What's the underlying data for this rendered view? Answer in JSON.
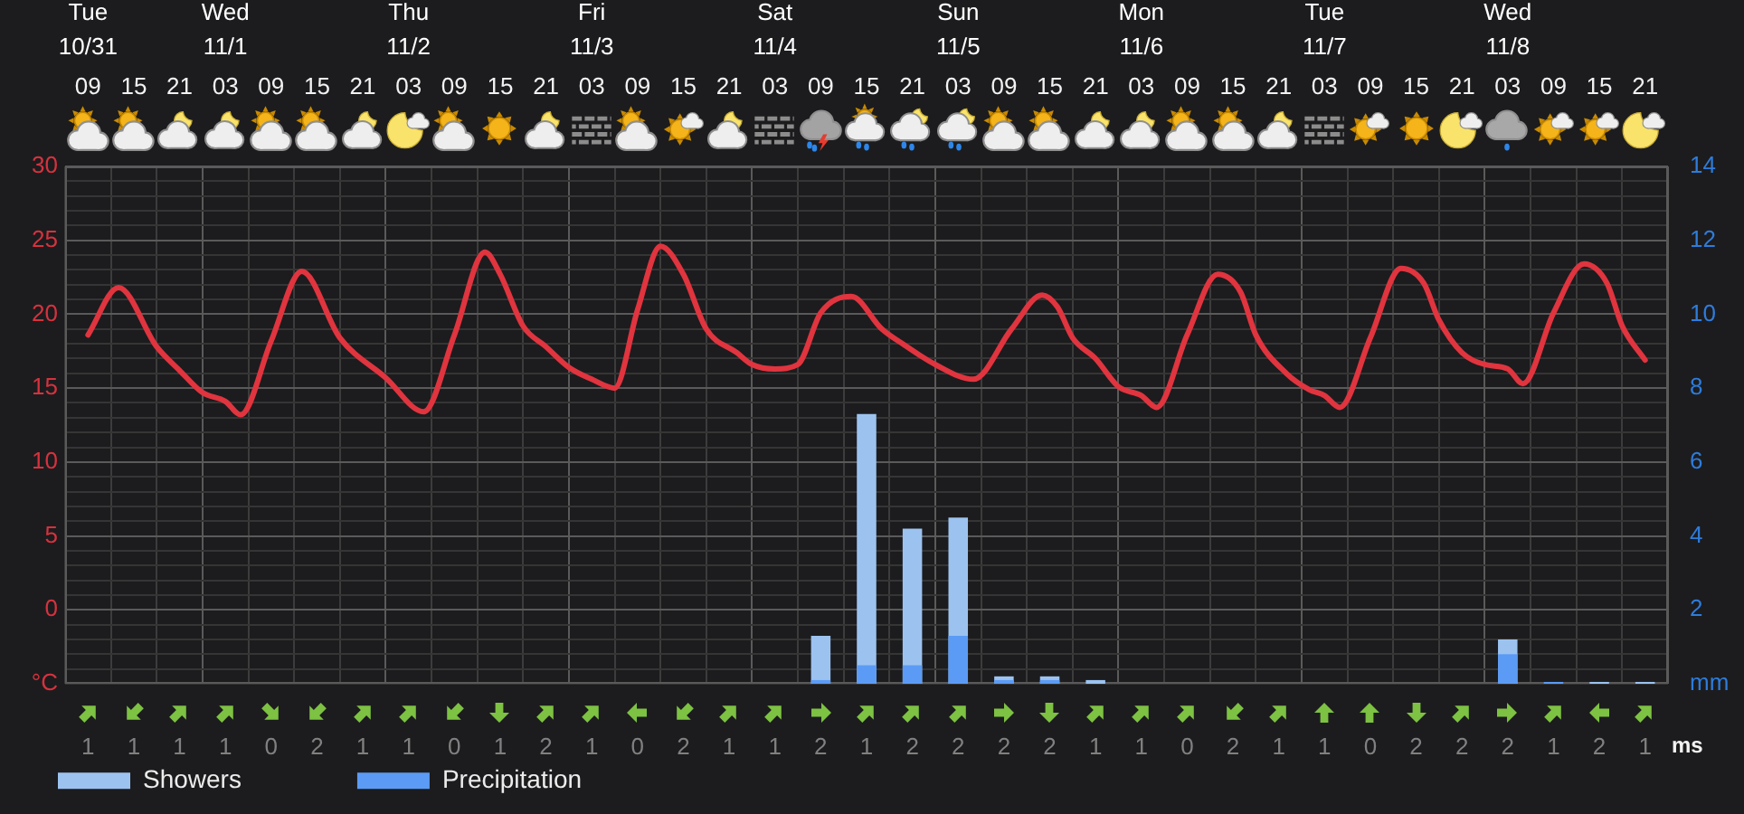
{
  "chart_data": [
    {
      "type": "bar",
      "x": [
        "--10-31T09:00",
        "--10-31T15:00",
        "--10-31T21:00",
        "--11-01T03:00",
        "--11-01T09:00",
        "--11-01T15:00",
        "--11-01T21:00",
        "--11-02T03:00",
        "--11-02T09:00",
        "--11-02T15:00",
        "--11-02T21:00",
        "--11-03T03:00",
        "--11-03T09:00",
        "--11-03T15:00",
        "--11-03T21:00",
        "--11-04T03:00",
        "--11-04T09:00",
        "--11-04T15:00",
        "--11-04T21:00",
        "--11-05T03:00",
        "--11-05T09:00",
        "--11-05T15:00",
        "--11-05T21:00",
        "--11-06T03:00",
        "--11-06T09:00",
        "--11-06T15:00",
        "--11-06T21:00",
        "--11-07T03:00",
        "--11-07T09:00",
        "--11-07T15:00",
        "--11-07T21:00",
        "--11-08T03:00",
        "--11-08T09:00",
        "--11-08T15:00",
        "--11-08T21:00"
      ],
      "xlim": [
        "--10-31T06:00",
        "--11-09T00:00"
      ],
      "xticks": [
        {
          "value": "--10-31T06:00",
          "label": null
        },
        {
          "value": "--10-31T09:00",
          "label": "09"
        },
        {
          "value": "--10-31T12:00",
          "label": null
        },
        {
          "value": "--10-31T15:00",
          "label": "15"
        },
        {
          "value": "--10-31T18:00",
          "label": null
        },
        {
          "value": "--10-31T21:00",
          "label": "21"
        },
        {
          "value": "--11-01T00:00",
          "label": null
        },
        {
          "value": "--11-01T03:00",
          "label": "03"
        },
        {
          "value": "--11-01T06:00",
          "label": null
        },
        {
          "value": "--11-01T09:00",
          "label": "09"
        },
        {
          "value": "--11-01T12:00",
          "label": null
        },
        {
          "value": "--11-01T15:00",
          "label": "15"
        },
        {
          "value": "--11-01T18:00",
          "label": null
        },
        {
          "value": "--11-01T21:00",
          "label": "21"
        },
        {
          "value": "--11-02T00:00",
          "label": null
        },
        {
          "value": "--11-02T03:00",
          "label": "03"
        },
        {
          "value": "--11-02T06:00",
          "label": null
        },
        {
          "value": "--11-02T09:00",
          "label": "09"
        },
        {
          "value": "--11-02T12:00",
          "label": null
        },
        {
          "value": "--11-02T15:00",
          "label": "15"
        },
        {
          "value": "--11-02T18:00",
          "label": null
        },
        {
          "value": "--11-02T21:00",
          "label": "21"
        },
        {
          "value": "--11-03T00:00",
          "label": null
        },
        {
          "value": "--11-03T03:00",
          "label": "03"
        },
        {
          "value": "--11-03T06:00",
          "label": null
        },
        {
          "value": "--11-03T09:00",
          "label": "09"
        },
        {
          "value": "--11-03T12:00",
          "label": null
        },
        {
          "value": "--11-03T15:00",
          "label": "15"
        },
        {
          "value": "--11-03T18:00",
          "label": null
        },
        {
          "value": "--11-03T21:00",
          "label": "21"
        },
        {
          "value": "--11-04T00:00",
          "label": null
        },
        {
          "value": "--11-04T03:00",
          "label": "03"
        },
        {
          "value": "--11-04T06:00",
          "label": null
        },
        {
          "value": "--11-04T09:00",
          "label": "09"
        },
        {
          "value": "--11-04T12:00",
          "label": null
        },
        {
          "value": "--11-04T15:00",
          "label": "15"
        },
        {
          "value": "--11-04T18:00",
          "label": null
        },
        {
          "value": "--11-04T21:00",
          "label": "21"
        },
        {
          "value": "--11-05T00:00",
          "label": null
        },
        {
          "value": "--11-05T03:00",
          "label": "03"
        },
        {
          "value": "--11-05T06:00",
          "label": null
        },
        {
          "value": "--11-05T09:00",
          "label": "09"
        },
        {
          "value": "--11-05T12:00",
          "label": null
        },
        {
          "value": "--11-05T15:00",
          "label": "15"
        },
        {
          "value": "--11-05T18:00",
          "label": null
        },
        {
          "value": "--11-05T21:00",
          "label": "21"
        },
        {
          "value": "--11-06T00:00",
          "label": null
        },
        {
          "value": "--11-06T03:00",
          "label": "03"
        },
        {
          "value": "--11-06T06:00",
          "label": null
        },
        {
          "value": "--11-06T09:00",
          "label": "09"
        },
        {
          "value": "--11-06T12:00",
          "label": null
        },
        {
          "value": "--11-06T15:00",
          "label": "15"
        },
        {
          "value": "--11-06T18:00",
          "label": null
        },
        {
          "value": "--11-06T21:00",
          "label": "21"
        },
        {
          "value": "--11-07T00:00",
          "label": null
        },
        {
          "value": "--11-07T03:00",
          "label": "03"
        },
        {
          "value": "--11-07T06:00",
          "label": null
        },
        {
          "value": "--11-07T09:00",
          "label": "09"
        },
        {
          "value": "--11-07T12:00",
          "label": null
        },
        {
          "value": "--11-07T15:00",
          "label": "15"
        },
        {
          "value": "--11-07T18:00",
          "label": null
        },
        {
          "value": "--11-07T21:00",
          "label": "21"
        },
        {
          "value": "--11-08T00:00",
          "label": null
        },
        {
          "value": "--11-08T03:00",
          "label": "03"
        },
        {
          "value": "--11-08T06:00",
          "label": null
        },
        {
          "value": "--11-08T09:00",
          "label": "09"
        },
        {
          "value": "--11-08T12:00",
          "label": null
        },
        {
          "value": "--11-08T15:00",
          "label": "15"
        },
        {
          "value": "--11-08T18:00",
          "label": null
        },
        {
          "value": "--11-08T21:00",
          "label": "21"
        },
        {
          "value": "--11-09T00:00",
          "label": null
        }
      ],
      "x2lim": [
        "--10-31T06:00",
        "--11-09T00:00"
      ],
      "x2ticks": [
        {
          "value": "--10-31T09:00",
          "label": "Tue\n10/31"
        },
        {
          "value": "--11-01T03:00",
          "label": "Wed\n11/1"
        },
        {
          "value": "--11-02T03:00",
          "label": "Thu\n11/2"
        },
        {
          "value": "--11-03T03:00",
          "label": "Fri\n11/3"
        },
        {
          "value": "--11-04T03:00",
          "label": "Sat\n11/4"
        },
        {
          "value": "--11-05T03:00",
          "label": "Sun\n11/5"
        },
        {
          "value": "--11-06T03:00",
          "label": "Mon\n11/6"
        },
        {
          "value": "--11-07T03:00",
          "label": "Tue\n11/7"
        },
        {
          "value": "--11-08T03:00",
          "label": "Wed\n11/8"
        }
      ],
      "ylim": [
        -5,
        30
      ],
      "yticks": [
        {
          "value": -5,
          "label": null
        },
        {
          "value": -4,
          "label": null
        },
        {
          "value": -3,
          "label": null
        },
        {
          "value": -2,
          "label": null
        },
        {
          "value": -1,
          "label": null
        },
        0,
        {
          "value": 1,
          "label": null
        },
        {
          "value": 2,
          "label": null
        },
        {
          "value": 3,
          "label": null
        },
        {
          "value": 4,
          "label": null
        },
        5,
        {
          "value": 6,
          "label": null
        },
        {
          "value": 7,
          "label": null
        },
        {
          "value": 8,
          "label": null
        },
        {
          "value": 9,
          "label": null
        },
        10,
        {
          "value": 11,
          "label": null
        },
        {
          "value": 12,
          "label": null
        },
        {
          "value": 13,
          "label": null
        },
        {
          "value": 14,
          "label": null
        },
        15,
        {
          "value": 16,
          "label": null
        },
        {
          "value": 17,
          "label": null
        },
        {
          "value": 18,
          "label": null
        },
        {
          "value": 19,
          "label": null
        },
        20,
        {
          "value": 21,
          "label": null
        },
        {
          "value": 22,
          "label": null
        },
        {
          "value": 23,
          "label": null
        },
        {
          "value": 24,
          "label": null
        },
        25,
        {
          "value": 26,
          "label": null
        },
        {
          "value": 27,
          "label": null
        },
        {
          "value": 28,
          "label": null
        },
        {
          "value": 29,
          "label": null
        },
        30
      ],
      "ylabel": "°C",
      "y2lim": [
        0,
        14
      ],
      "y2ticks": [
        2,
        4,
        6,
        8,
        10,
        12,
        14
      ],
      "y2label": "mm",
      "series": [
        {
          "type": "line",
          "color": "#e0343f",
          "x": [
            "--10-31T09:00",
            "--10-31T13:00",
            "--10-31T18:00",
            "--10-31T21:00",
            "--11-01T00:00",
            "--11-01T03:00",
            "--11-01T05:00",
            "--11-01T09:00",
            "--11-01T13:00",
            "--11-01T18:00",
            "--11-02T00:00",
            "--11-02T05:00",
            "--11-02T09:00",
            "--11-02T13:00",
            "--11-02T15:00",
            "--11-02T18:00",
            "--11-02T21:00",
            "--11-03T00:00",
            "--11-03T03:00",
            "--11-03T06:00",
            "--11-03T09:00",
            "--11-03T12:00",
            "--11-03T15:00",
            "--11-03T18:00",
            "--11-03T22:00",
            "--11-04T00:00",
            "--11-04T03:00",
            "--11-04T06:00",
            "--11-04T09:00",
            "--11-04T13:00",
            "--11-04T17:00",
            "--11-04T20:00",
            "--11-05T00:00",
            "--11-05T05:00",
            "--11-05T10:00",
            "--11-05T14:00",
            "--11-05T16:00",
            "--11-05T18:00",
            "--11-05T21:00",
            "--11-06T00:00",
            "--11-06T03:00",
            "--11-06T05:00",
            "--11-06T09:00",
            "--11-06T13:00",
            "--11-06T16:00",
            "--11-06T18:00",
            "--11-06T22:00",
            "--11-07T01:00",
            "--11-07T03:00",
            "--11-07T05:00",
            "--11-07T09:00",
            "--11-07T13:00",
            "--11-07T16:00",
            "--11-07T18:00",
            "--11-07T21:00",
            "--11-08T00:00",
            "--11-08T03:00",
            "--11-08T05:00",
            "--11-08T09:00",
            "--11-08T13:00",
            "--11-08T16:00",
            "--11-08T18:00",
            "--11-08T21:00"
          ],
          "values": [
            18.6,
            21.8,
            17.8,
            16.2,
            14.7,
            14.1,
            13.2,
            18.2,
            22.9,
            18.4,
            15.7,
            13.4,
            18.6,
            24.2,
            22.7,
            19.2,
            17.8,
            16.4,
            15.6,
            15,
            20.3,
            24.6,
            22.7,
            19,
            17.4,
            16.6,
            16.3,
            16.6,
            20.1,
            21.2,
            19,
            17.9,
            16.6,
            15.6,
            19,
            21.3,
            20.5,
            18.4,
            17,
            15.1,
            14.5,
            13.7,
            18.6,
            22.7,
            21.5,
            18.6,
            16,
            14.9,
            14.5,
            13.7,
            18.4,
            23.1,
            22.1,
            19.6,
            17.4,
            16.6,
            16.3,
            15.3,
            20.1,
            23.4,
            22.1,
            19.2,
            16.9
          ]
        },
        {
          "name": "Showers",
          "color": "#9cc3f0",
          "axis": "y2",
          "values": [
            0,
            0,
            0,
            0,
            0,
            0,
            0,
            0,
            0,
            0,
            0,
            0,
            0,
            0,
            0,
            0,
            1.3,
            7.3,
            4.2,
            4.5,
            0.2,
            0.2,
            0.1,
            0,
            0,
            0,
            0,
            0,
            0,
            0,
            0,
            1.2,
            0,
            0.05,
            0.05
          ]
        },
        {
          "name": "Precipitation",
          "color": "#5b9bf5",
          "axis": "y2",
          "values": [
            0,
            0,
            0,
            0,
            0,
            0,
            0,
            0,
            0,
            0,
            0,
            0,
            0,
            0,
            0,
            0,
            0.1,
            0.5,
            0.5,
            1.3,
            0.1,
            0.1,
            0,
            0,
            0,
            0,
            0,
            0,
            0,
            0,
            0,
            0.8,
            0.05,
            0,
            0
          ]
        }
      ],
      "grid": true,
      "legend": "bottom left"
    },
    {
      "type": "other",
      "categories": [
        null,
        null,
        null,
        null,
        null,
        null,
        null,
        null,
        null,
        null,
        null,
        null,
        null,
        null,
        null,
        null,
        null,
        null,
        null,
        null,
        null,
        null,
        null,
        null,
        null,
        null,
        null,
        null,
        null,
        null,
        null,
        null,
        null,
        null,
        null
      ],
      "values": [
        1,
        1,
        1,
        1,
        0,
        2,
        1,
        1,
        0,
        1,
        2,
        1,
        0,
        2,
        1,
        1,
        2,
        1,
        2,
        2,
        2,
        2,
        1,
        1,
        0,
        2,
        1,
        1,
        0,
        2,
        2,
        2,
        1,
        2,
        1
      ],
      "data_labels": true,
      "ylabel": "ms"
    }
  ]
}
